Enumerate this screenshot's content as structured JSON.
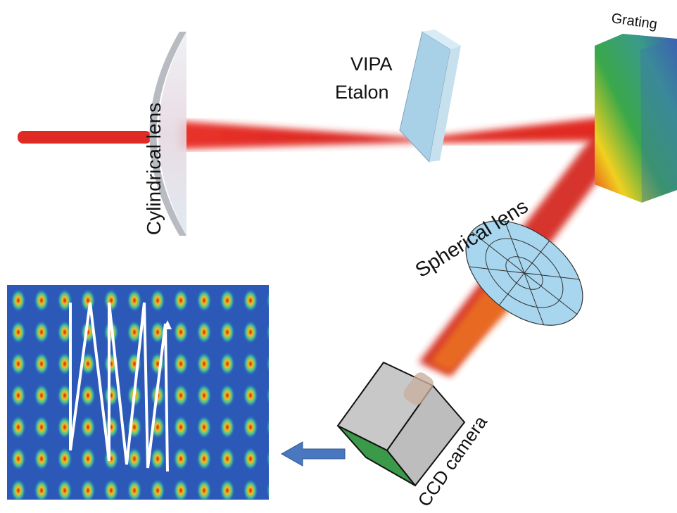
{
  "components": [
    {
      "label": "Cylindrical lens"
    },
    {
      "label_lines": [
        "VIPA",
        "Etalon"
      ]
    },
    {
      "label": "Grating"
    },
    {
      "label": "Spherical lens"
    },
    {
      "label": "CCD camera"
    }
  ]
}
